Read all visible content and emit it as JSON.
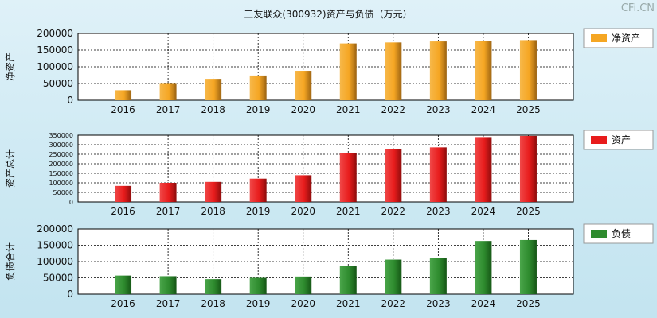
{
  "watermark": "CFi.CN",
  "chart_data": {
    "type": "bar",
    "title": "三友联众(300932)资产与负债（万元）",
    "categories": [
      "2016",
      "2017",
      "2018",
      "2019",
      "2020",
      "2021",
      "2022",
      "2023",
      "2024",
      "2025"
    ],
    "panels": [
      {
        "id": "net-assets",
        "ylabel": "净资产",
        "legend": "净资产",
        "color": "#f5a623",
        "ylim": [
          0,
          200000
        ],
        "yticks": [
          "0",
          "50000",
          "100000",
          "150000",
          "200000"
        ],
        "values": [
          30000,
          49000,
          64000,
          74000,
          88000,
          170000,
          173000,
          176000,
          178000,
          180000
        ]
      },
      {
        "id": "total-assets",
        "ylabel": "资产总计",
        "legend": "资产",
        "color": "#e81c1c",
        "ylim": [
          0,
          350000
        ],
        "yticks": [
          "0",
          "50000",
          "100000",
          "150000",
          "200000",
          "250000",
          "300000",
          "350000"
        ],
        "values": [
          84000,
          100000,
          105000,
          122000,
          140000,
          257000,
          278000,
          286000,
          340000,
          346000
        ]
      },
      {
        "id": "liabilities",
        "ylabel": "负债合计",
        "legend": "负债",
        "color": "#2e8b2e",
        "ylim": [
          0,
          200000
        ],
        "yticks": [
          "0",
          "50000",
          "100000",
          "150000",
          "200000"
        ],
        "values": [
          57000,
          55000,
          46000,
          50000,
          54000,
          87000,
          106000,
          112000,
          163000,
          166000
        ]
      }
    ]
  }
}
